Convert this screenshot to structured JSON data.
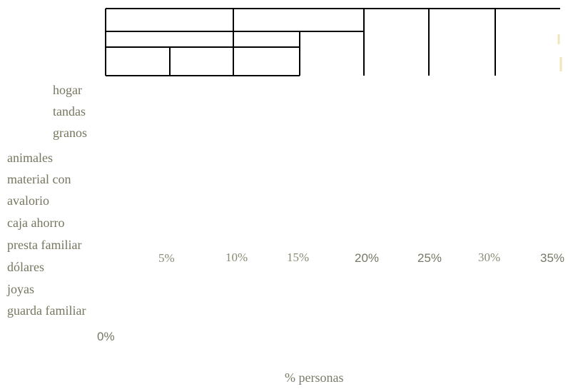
{
  "chart_data": {
    "type": "table",
    "categories": [
      "hogar",
      "tandas",
      "granos",
      "animales",
      "material con",
      "avalorio",
      "caja ahorro",
      "presta familiar",
      "dólares",
      "joyas",
      "guarda familiar"
    ],
    "x_ticks": [
      "5%",
      "10%",
      "15%",
      "20%",
      "25%",
      "30%",
      "35%"
    ],
    "zero_tick": "0%",
    "xlabel": "% personas",
    "grid": true,
    "colors": {
      "text": "#76765f",
      "grid": "#000000",
      "accent": "#f0e6b8"
    }
  }
}
